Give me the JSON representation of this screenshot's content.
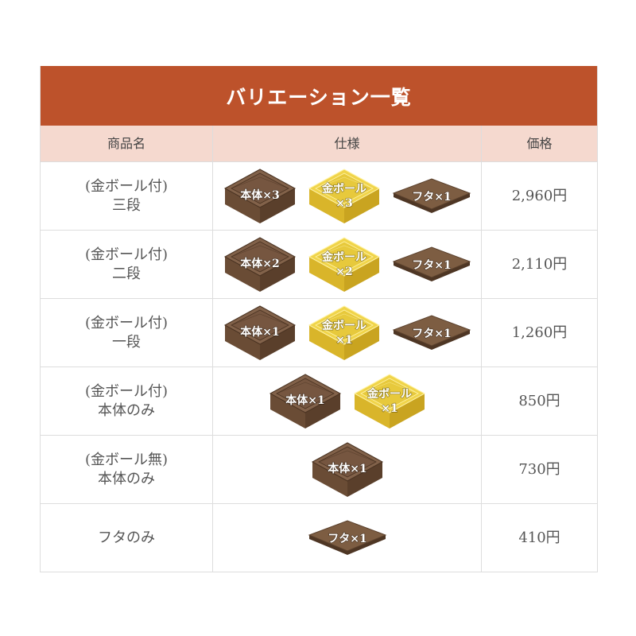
{
  "title": "バリエーション一覧",
  "headers": [
    "商品名",
    "仕様",
    "価格"
  ],
  "colors": {
    "header": "#bd522b",
    "subheader": "#f5d9cf",
    "body_box": "#7a5a40",
    "gold_ball": "#e8c738",
    "lid": "#7a5a40"
  },
  "rows": [
    {
      "name1": "(金ボール付)",
      "name2": "三段",
      "items": [
        {
          "type": "body",
          "l1": "本体×3"
        },
        {
          "type": "gold",
          "l1": "金ボール",
          "l2": "×3"
        },
        {
          "type": "lid",
          "l1": "フタ×1"
        }
      ],
      "price": "2,960円"
    },
    {
      "name1": "(金ボール付)",
      "name2": "二段",
      "items": [
        {
          "type": "body",
          "l1": "本体×2"
        },
        {
          "type": "gold",
          "l1": "金ボール",
          "l2": "×2"
        },
        {
          "type": "lid",
          "l1": "フタ×1"
        }
      ],
      "price": "2,110円"
    },
    {
      "name1": "(金ボール付)",
      "name2": "一段",
      "items": [
        {
          "type": "body",
          "l1": "本体×1"
        },
        {
          "type": "gold",
          "l1": "金ボール",
          "l2": "×1"
        },
        {
          "type": "lid",
          "l1": "フタ×1"
        }
      ],
      "price": "1,260円"
    },
    {
      "name1": "(金ボール付)",
      "name2": "本体のみ",
      "items": [
        {
          "type": "body",
          "l1": "本体×1"
        },
        {
          "type": "gold",
          "l1": "金ボール",
          "l2": "×1"
        }
      ],
      "price": "850円"
    },
    {
      "name1": "(金ボール無)",
      "name2": "本体のみ",
      "items": [
        {
          "type": "body",
          "l1": "本体×1"
        }
      ],
      "price": "730円"
    },
    {
      "name1": "フタのみ",
      "name2": "",
      "items": [
        {
          "type": "lid",
          "l1": "フタ×1"
        }
      ],
      "price": "410円"
    }
  ]
}
